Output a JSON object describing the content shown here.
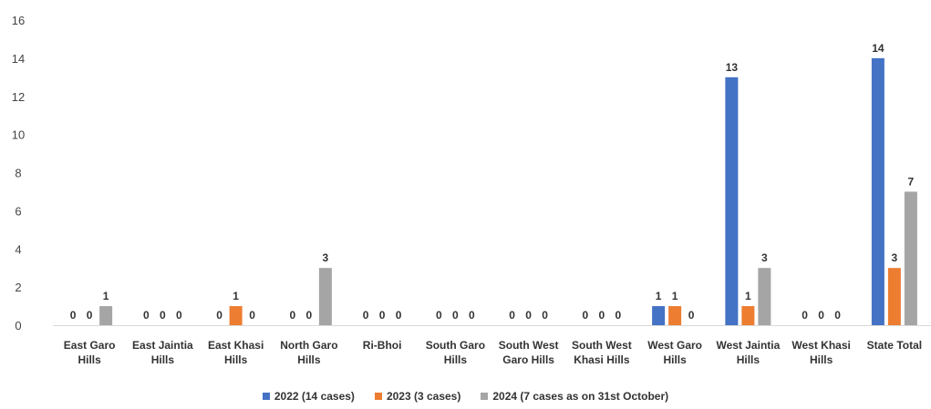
{
  "chart_data": {
    "type": "bar",
    "title": "",
    "xlabel": "",
    "ylabel": "",
    "ylim": [
      0,
      16
    ],
    "yticks": [
      0,
      2,
      4,
      6,
      8,
      10,
      12,
      14,
      16
    ],
    "grid": false,
    "legend_position": "bottom",
    "categories": [
      [
        "East Garo",
        "Hills"
      ],
      [
        "East Jaintia",
        "Hills"
      ],
      [
        "East Khasi",
        "Hills"
      ],
      [
        "North Garo",
        "Hills"
      ],
      [
        "Ri-Bhoi"
      ],
      [
        "South Garo",
        "Hills"
      ],
      [
        "South West",
        "Garo Hills"
      ],
      [
        "South West",
        "Khasi Hills"
      ],
      [
        "West Garo",
        "Hills"
      ],
      [
        "West Jaintia",
        "Hills"
      ],
      [
        "West Khasi",
        "Hills"
      ],
      [
        "State Total"
      ]
    ],
    "series": [
      {
        "name": "2022 (14 cases)",
        "color": "#4472C4",
        "values": [
          0,
          0,
          0,
          0,
          0,
          0,
          0,
          0,
          1,
          13,
          0,
          14
        ]
      },
      {
        "name": "2023 (3 cases)",
        "color": "#ED7D31",
        "values": [
          0,
          0,
          1,
          0,
          0,
          0,
          0,
          0,
          1,
          1,
          0,
          3
        ]
      },
      {
        "name": "2024 (7 cases as on 31st October)",
        "color": "#A5A5A5",
        "values": [
          1,
          0,
          0,
          3,
          0,
          0,
          0,
          0,
          0,
          3,
          0,
          7
        ]
      }
    ]
  }
}
